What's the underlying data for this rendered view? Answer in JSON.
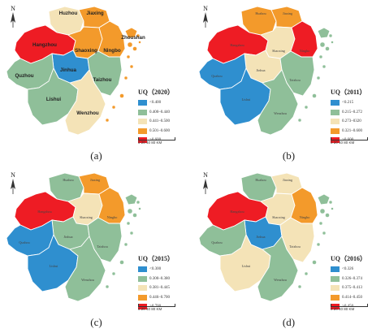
{
  "colors": {
    "blue": "#2f8fcf",
    "green": "#8fbf99",
    "cream": "#f4e3b7",
    "orange": "#f39a2b",
    "red": "#ee1c24"
  },
  "cities": [
    "Huzhou",
    "Jiaxing",
    "Hangzhou",
    "Shaoxing",
    "Ningbo",
    "Zhoushan",
    "Jinhua",
    "Quzhou",
    "Taizhou",
    "Lishui",
    "Wenzhou"
  ],
  "scale_text": "0  20  40      80 KM",
  "north_label": "N",
  "panels": [
    {
      "label": "(a)",
      "legend_title": "UQ（2020）",
      "legend": [
        {
          "color": "blue",
          "text": "<0.400"
        },
        {
          "color": "green",
          "text": "0.400–0.440"
        },
        {
          "color": "cream",
          "text": "0.441–0.500"
        },
        {
          "color": "orange",
          "text": "0.501–0.600"
        },
        {
          "color": "red",
          "text": ">0.600"
        }
      ],
      "fills": {
        "Huzhou": "cream",
        "Jiaxing": "orange",
        "Hangzhou": "red",
        "Shaoxing": "orange",
        "Ningbo": "orange",
        "Zhoushan": "orange",
        "Jinhua": "blue",
        "Quzhou": "green",
        "Taizhou": "green",
        "Lishui": "green",
        "Wenzhou": "cream"
      }
    },
    {
      "label": "(b)",
      "legend_title": "UQ（2011）",
      "legend": [
        {
          "color": "blue",
          "text": "<0.215"
        },
        {
          "color": "green",
          "text": "0.215–0.272"
        },
        {
          "color": "cream",
          "text": "0.273–0320"
        },
        {
          "color": "orange",
          "text": "0.321–0.600"
        },
        {
          "color": "red",
          "text": ">0.600"
        }
      ],
      "fills": {
        "Huzhou": "orange",
        "Jiaxing": "orange",
        "Hangzhou": "red",
        "Shaoxing": "cream",
        "Ningbo": "red",
        "Zhoushan": "green",
        "Jinhua": "cream",
        "Quzhou": "blue",
        "Taizhou": "green",
        "Lishui": "blue",
        "Wenzhou": "green"
      }
    },
    {
      "label": "(c)",
      "legend_title": "UQ（2015）",
      "legend": [
        {
          "color": "blue",
          "text": "<0.300"
        },
        {
          "color": "green",
          "text": "0.300–0.380"
        },
        {
          "color": "cream",
          "text": "0.381–0.445"
        },
        {
          "color": "orange",
          "text": "0.446–0.700"
        },
        {
          "color": "red",
          "text": ">0.700"
        }
      ],
      "fills": {
        "Huzhou": "green",
        "Jiaxing": "orange",
        "Hangzhou": "red",
        "Shaoxing": "cream",
        "Ningbo": "orange",
        "Zhoushan": "green",
        "Jinhua": "green",
        "Quzhou": "blue",
        "Taizhou": "green",
        "Lishui": "blue",
        "Wenzhou": "green"
      }
    },
    {
      "label": "(d)",
      "legend_title": "UQ（2016）",
      "legend": [
        {
          "color": "blue",
          "text": "<0.326"
        },
        {
          "color": "green",
          "text": "0.326–0.374"
        },
        {
          "color": "cream",
          "text": "0.375–0.413"
        },
        {
          "color": "orange",
          "text": "0.414–0.450"
        },
        {
          "color": "red",
          "text": ">0.450"
        }
      ],
      "fills": {
        "Huzhou": "green",
        "Jiaxing": "cream",
        "Hangzhou": "red",
        "Shaoxing": "cream",
        "Ningbo": "orange",
        "Zhoushan": "green",
        "Jinhua": "blue",
        "Quzhou": "green",
        "Taizhou": "cream",
        "Lishui": "cream",
        "Wenzhou": "green"
      }
    }
  ]
}
